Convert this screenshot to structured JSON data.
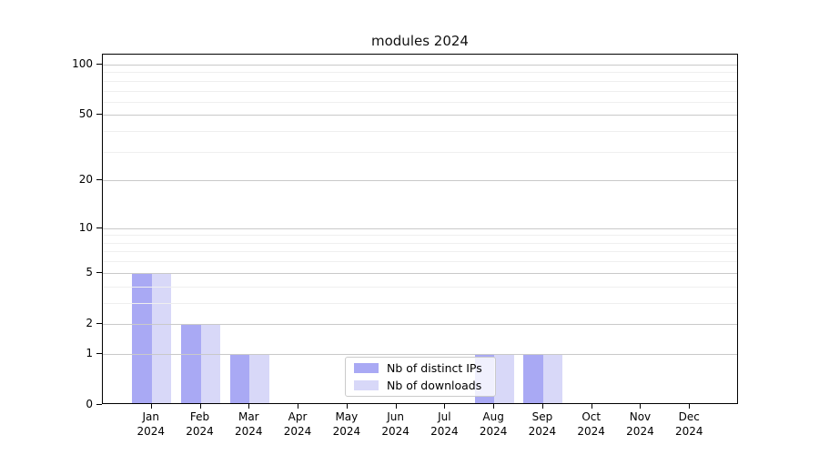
{
  "chart_data": {
    "type": "bar",
    "title": "modules 2024",
    "categories": [
      "Jan",
      "Feb",
      "Mar",
      "Apr",
      "May",
      "Jun",
      "Jul",
      "Aug",
      "Sep",
      "Oct",
      "Nov",
      "Dec"
    ],
    "year_label": "2024",
    "series": [
      {
        "name": "Nb of distinct IPs",
        "color": "#a9a9f4",
        "values": [
          5,
          2,
          1,
          0,
          0,
          0,
          0,
          1,
          1,
          0,
          0,
          0
        ]
      },
      {
        "name": "Nb of downloads",
        "color": "#d8d8f8",
        "values": [
          5,
          2,
          1,
          0,
          0,
          0,
          0,
          1,
          1,
          0,
          0,
          0
        ]
      }
    ],
    "y_ticks_major": [
      0,
      1,
      2,
      5,
      10,
      20,
      50,
      100
    ],
    "y_ticks_minor": [
      3,
      4,
      6,
      7,
      8,
      9,
      30,
      40,
      60,
      70,
      80,
      90
    ],
    "y_max": 100,
    "scale": "log1p",
    "grid": true,
    "legend_position": "inside-bottom-center"
  }
}
